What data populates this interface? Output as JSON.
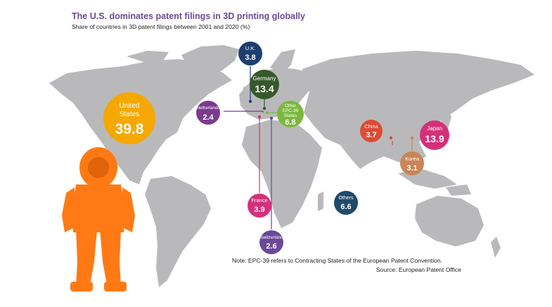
{
  "title": "The U.S. dominates patent filings in 3D printing globally",
  "subtitle": "Share of countries in 3D patent filings between 2001 and 2020 (%)",
  "note": "Note: EPC-39 refers to Contracting States of the European Patent Convention.",
  "source": "Source: European Patent Office",
  "chart_data": {
    "type": "bubble-map",
    "title": "The U.S. dominates patent filings in 3D printing globally",
    "subtitle": "Share of countries in 3D patent filings between 2001 and 2020 (%)",
    "unit": "%",
    "series": [
      {
        "country": [
          "United",
          "States"
        ],
        "value": "39.8",
        "color": "#f5a800"
      },
      {
        "country": [
          "Japan"
        ],
        "value": "13.9",
        "color": "#d4307a"
      },
      {
        "country": [
          "Germany"
        ],
        "value": "13.4",
        "color": "#35592a"
      },
      {
        "country": [
          "Other",
          "EPC-39",
          "States"
        ],
        "value": "6.8",
        "color": "#7cb83f"
      },
      {
        "country": [
          "Others"
        ],
        "value": "6.6",
        "color": "#1f4a6b"
      },
      {
        "country": [
          "France"
        ],
        "value": "3.9",
        "color": "#d4307a"
      },
      {
        "country": [
          "U.K."
        ],
        "value": "3.8",
        "color": "#1d3e6f"
      },
      {
        "country": [
          "China"
        ],
        "value": "3.7",
        "color": "#de4a34"
      },
      {
        "country": [
          "Korea"
        ],
        "value": "3.1",
        "color": "#c98556"
      },
      {
        "country": [
          "Switzerland"
        ],
        "value": "2.6",
        "color": "#6a4a96"
      },
      {
        "country": [
          "Netherlands"
        ],
        "value": "2.4",
        "color": "#7a3a8e"
      }
    ]
  }
}
